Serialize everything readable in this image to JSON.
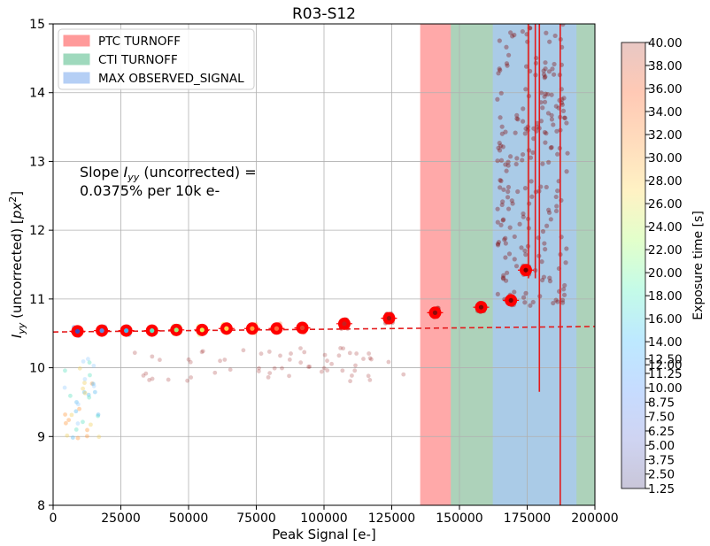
{
  "chart_data": {
    "type": "scatter",
    "title": "R03-S12",
    "xlabel": "Peak Signal [e-]",
    "ylabel": "I_yy (uncorrected) [px^2]",
    "xlim": [
      0,
      200000
    ],
    "ylim": [
      8,
      15
    ],
    "xticks": [
      0,
      25000,
      50000,
      75000,
      100000,
      125000,
      150000,
      175000,
      200000
    ],
    "xtick_labels": [
      "0",
      "25000",
      "50000",
      "75000",
      "100000",
      "125000",
      "150000",
      "175000",
      "200000"
    ],
    "yticks": [
      8,
      9,
      10,
      11,
      12,
      13,
      14,
      15
    ],
    "grid": true,
    "legend": {
      "placement": "top-left",
      "entries": [
        {
          "label": "PTC TURNOFF",
          "color": "#ff9a9a"
        },
        {
          "label": "CTI TURNOFF",
          "color": "#9fd9bd"
        },
        {
          "label": "MAX OBSERVED_SIGNAL",
          "color": "#b5cff5"
        }
      ]
    },
    "annotation": {
      "line1": "Slope I_yy (uncorrected) =",
      "line2": "0.0375% per 10k e-"
    },
    "bands": [
      {
        "name": "PTC TURNOFF",
        "x0": 135500,
        "x1": 200000,
        "color": "#ff9a9a",
        "opacity": 0.85
      },
      {
        "name": "CTI TURNOFF",
        "x0": 146800,
        "x1": 200000,
        "color": "#9fd9bd",
        "opacity": 0.85
      },
      {
        "name": "MAX OBSERVED_SIGNAL",
        "x0": 162300,
        "x1": 193200,
        "color": "#aac8f5",
        "opacity": 0.75
      }
    ],
    "fit_line": {
      "x": [
        0,
        200000
      ],
      "y": [
        10.52,
        10.6
      ],
      "color": "#e41a1c",
      "style": "dashed"
    },
    "binned_means": {
      "x": [
        9000,
        18000,
        27000,
        36500,
        45500,
        55000,
        64000,
        73500,
        82500,
        92000,
        107500,
        124000,
        141000,
        158000,
        169000,
        174500
      ],
      "y": [
        10.53,
        10.54,
        10.54,
        10.54,
        10.55,
        10.55,
        10.57,
        10.57,
        10.57,
        10.58,
        10.64,
        10.72,
        10.8,
        10.88,
        10.98,
        11.42
      ],
      "inner_colors": [
        "#3b4cc0",
        "#5c8ee0",
        "#3fb6f0",
        "#5be6c0",
        "#9ef27a",
        "#e0f05a",
        "#ffd24a",
        "#ff9d3c",
        "#ff6a3a",
        "#e8412c",
        "#c81e1e",
        "#a0140f",
        "#8a0c0c",
        "#800808",
        "#7a0505",
        "#700000"
      ]
    },
    "vertical_error_lines": [
      {
        "x": 175500,
        "y0": 11.3,
        "y1": 15,
        "color": "#e41a1c"
      },
      {
        "x": 178000,
        "y0": 11.3,
        "y1": 15,
        "color": "#e41a1c"
      },
      {
        "x": 179500,
        "y0": 9.65,
        "y1": 15,
        "color": "#e41a1c"
      },
      {
        "x": 187200,
        "y0": 8,
        "y1": 15,
        "color": "#e41a1c"
      }
    ],
    "colorbar": {
      "label": "Exposure time [s]",
      "min": 1.25,
      "max": 40.0,
      "tick_labels": [
        "1.25",
        "2.50",
        "3.75",
        "5.00",
        "6.25",
        "7.50",
        "8.75",
        "10.00",
        "11.25",
        "12.00",
        "12.50",
        "14.00",
        "16.00",
        "18.00",
        "20.00",
        "22.00",
        "24.00",
        "26.00",
        "28.00",
        "30.00",
        "32.00",
        "34.00",
        "36.00",
        "38.00",
        "40.00"
      ],
      "tick_values": [
        1.25,
        2.5,
        3.75,
        5.0,
        6.25,
        7.5,
        8.75,
        10.0,
        11.25,
        12.0,
        12.5,
        14.0,
        16.0,
        18.0,
        20.0,
        22.0,
        24.0,
        26.0,
        28.0,
        30.0,
        32.0,
        34.0,
        36.0,
        38.0,
        40.0
      ],
      "stops": [
        "#c9c6d9",
        "#cfd4f2",
        "#c6dcff",
        "#bde9ff",
        "#c4fbe8",
        "#e2ffcb",
        "#fff2c4",
        "#ffdcbd",
        "#ffc9b5",
        "#e8c8c4"
      ]
    }
  }
}
